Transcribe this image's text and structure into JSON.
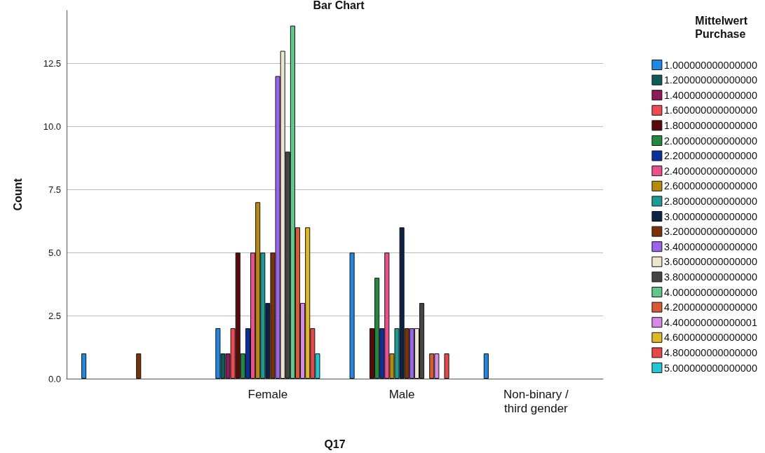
{
  "chart_data": {
    "type": "bar",
    "title": "Bar Chart",
    "xlabel": "Q17",
    "ylabel": "Count",
    "legend_title": "Mittelwert Purchase",
    "categories": [
      null,
      "Female",
      "Male",
      "Non-binary / third gender"
    ],
    "ylim": [
      0,
      14.6
    ],
    "yticks": [
      {
        "value": 0,
        "label": "0.0"
      },
      {
        "value": 2.5,
        "label": "2.5"
      },
      {
        "value": 5,
        "label": "5.0"
      },
      {
        "value": 7.5,
        "label": "7.5"
      },
      {
        "value": 10,
        "label": "10.0"
      },
      {
        "value": 12.5,
        "label": "12.5"
      }
    ],
    "grid": "y",
    "legend": "right",
    "series": [
      {
        "name": "1.000000000000000",
        "color": "#1e88e5",
        "values": [
          1,
          2,
          5,
          1
        ]
      },
      {
        "name": "1.200000000000000",
        "color": "#0e5c58",
        "values": [
          null,
          1,
          null,
          null
        ]
      },
      {
        "name": "1.400000000000000",
        "color": "#8e1a5a",
        "values": [
          null,
          1,
          null,
          null
        ]
      },
      {
        "name": "1.600000000000000",
        "color": "#f04a50",
        "values": [
          null,
          2,
          null,
          null
        ]
      },
      {
        "name": "1.800000000000000",
        "color": "#5a0a0a",
        "values": [
          null,
          5,
          2,
          null
        ]
      },
      {
        "name": "2.000000000000000",
        "color": "#218a3e",
        "values": [
          null,
          1,
          4,
          null
        ]
      },
      {
        "name": "2.200000000000000",
        "color": "#0a2f9e",
        "values": [
          null,
          2,
          2,
          null
        ]
      },
      {
        "name": "2.400000000000000",
        "color": "#ec4f8a",
        "values": [
          null,
          5,
          5,
          null
        ]
      },
      {
        "name": "2.600000000000000",
        "color": "#b88a0a",
        "values": [
          null,
          7,
          1,
          null
        ]
      },
      {
        "name": "2.800000000000000",
        "color": "#1c9a94",
        "values": [
          null,
          5,
          2,
          null
        ]
      },
      {
        "name": "3.000000000000000",
        "color": "#0a2448",
        "values": [
          null,
          3,
          6,
          null
        ]
      },
      {
        "name": "3.200000000000000",
        "color": "#7a3308",
        "values": [
          1,
          5,
          2,
          null
        ]
      },
      {
        "name": "3.400000000000000",
        "color": "#9a63f0",
        "values": [
          null,
          12,
          2,
          null
        ]
      },
      {
        "name": "3.600000000000000",
        "color": "#ede6cc",
        "values": [
          null,
          13,
          2,
          null
        ]
      },
      {
        "name": "3.800000000000000",
        "color": "#454545",
        "values": [
          null,
          9,
          3,
          null
        ]
      },
      {
        "name": "4.000000000000000",
        "color": "#5ec98a",
        "values": [
          null,
          14,
          null,
          null
        ]
      },
      {
        "name": "4.200000000000000",
        "color": "#d75a30",
        "values": [
          null,
          6,
          1,
          null
        ]
      },
      {
        "name": "4.400000000000001",
        "color": "#d58ae8",
        "values": [
          null,
          3,
          1,
          null
        ]
      },
      {
        "name": "4.600000000000000",
        "color": "#e0b820",
        "values": [
          null,
          6,
          null,
          null
        ]
      },
      {
        "name": "4.800000000000000",
        "color": "#e8474a",
        "values": [
          null,
          2,
          1,
          null
        ]
      },
      {
        "name": "5.000000000000000",
        "color": "#20c8d4",
        "values": [
          null,
          1,
          null,
          null
        ]
      }
    ]
  }
}
